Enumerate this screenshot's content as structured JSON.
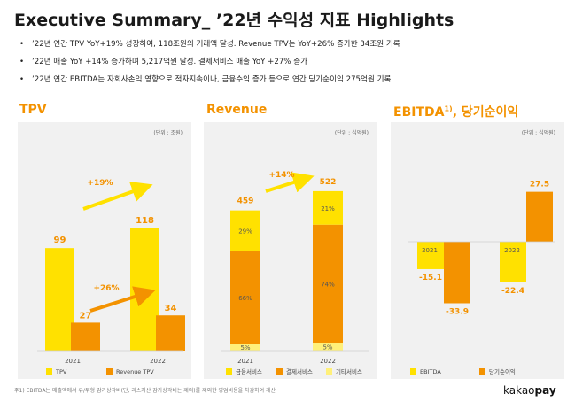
{
  "title": "Executive Summary_ ’22년 수익성 지표 Highlights",
  "bullets": [
    "’22년 연간 TPV YoY+19% 성장하여, 118조원의 거래액 달성. Revenue TPV는 YoY+26% 증가한 34조원 기록",
    "’22년 매출 YoY +14% 증가하며 5,217억원 달성. 결제서비스 매출 YoY +27% 증가",
    "’22년 연간 EBITDA는 자회사손익 영향으로 적자지속이나, 금융수익 증가 등으로 연간 당기순이익 275억원 기록"
  ],
  "sections": {
    "tpv": "TPV",
    "revenue": "Revenue",
    "ebitda_prefix": "EBITDA",
    "ebitda_sup": "1)",
    "ebitda_suffix": ", 당기순이익"
  },
  "footnote": "주1) EBITDA는 매출액에서 유/무형 감가상각비(단, 리스자산 감가상각비는 제외)를 제외한 영업비용을 차감하여 계산",
  "logo": {
    "part1": "kakao",
    "part2": "pay"
  },
  "colors": {
    "yellow": "#ffe100",
    "orange": "#f39200",
    "light_yellow": "#fff07a",
    "panel_bg": "#f1f1f1"
  },
  "chart_data": [
    {
      "type": "bar",
      "unit_label": "(단위 : 조원)",
      "categories": [
        "2021",
        "2022"
      ],
      "series": [
        {
          "name": "TPV",
          "values": [
            99,
            118
          ],
          "color": "#ffe100"
        },
        {
          "name": "Revenue TPV",
          "values": [
            27,
            34
          ],
          "color": "#f39200"
        }
      ],
      "annotations": [
        "+19%",
        "+26%"
      ]
    },
    {
      "type": "bar",
      "stacked": true,
      "unit_label": "(단위 : 십억원)",
      "categories": [
        "2021",
        "2022"
      ],
      "totals": [
        459,
        522
      ],
      "series": [
        {
          "name": "금융서비스",
          "shares": [
            "29%",
            "21%"
          ],
          "color": "#ffe100"
        },
        {
          "name": "결제서비스",
          "shares": [
            "66%",
            "74%"
          ],
          "color": "#f39200"
        },
        {
          "name": "기타서비스",
          "shares": [
            "5%",
            "5%"
          ],
          "color": "#fff07a"
        }
      ],
      "annotations": [
        "+14%"
      ]
    },
    {
      "type": "bar",
      "unit_label": "(단위 : 십억원)",
      "categories": [
        "2021",
        "2022"
      ],
      "series": [
        {
          "name": "EBITDA",
          "values": [
            -15.1,
            -22.4
          ],
          "color": "#ffe100"
        },
        {
          "name": "당기순이익",
          "values": [
            -33.9,
            27.5
          ],
          "color": "#f39200"
        }
      ]
    }
  ]
}
